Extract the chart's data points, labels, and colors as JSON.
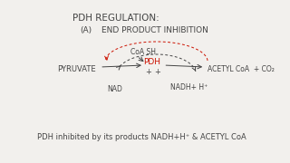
{
  "bg_color": "#f2f0ed",
  "title": "PDH REGULATION:",
  "subtitle_a": "(A)",
  "subtitle_b": "END PRODUCT INHIBITION",
  "label_CoASH": "CoA SH",
  "label_pyruvate": "PYRUVATE",
  "label_pdh": "PDH",
  "label_acetyl": "ACETYL CoA  + CO₂",
  "label_nad": "NAD",
  "label_nadh": "NADH+ H⁺",
  "bottom_text": "PDH inhibited by its products NADH+H⁺ & ACETYL CoA",
  "arrow_color": "#444444",
  "pdh_color": "#cc1100",
  "text_color": "#444444",
  "inhibit_color": "#cc1100"
}
